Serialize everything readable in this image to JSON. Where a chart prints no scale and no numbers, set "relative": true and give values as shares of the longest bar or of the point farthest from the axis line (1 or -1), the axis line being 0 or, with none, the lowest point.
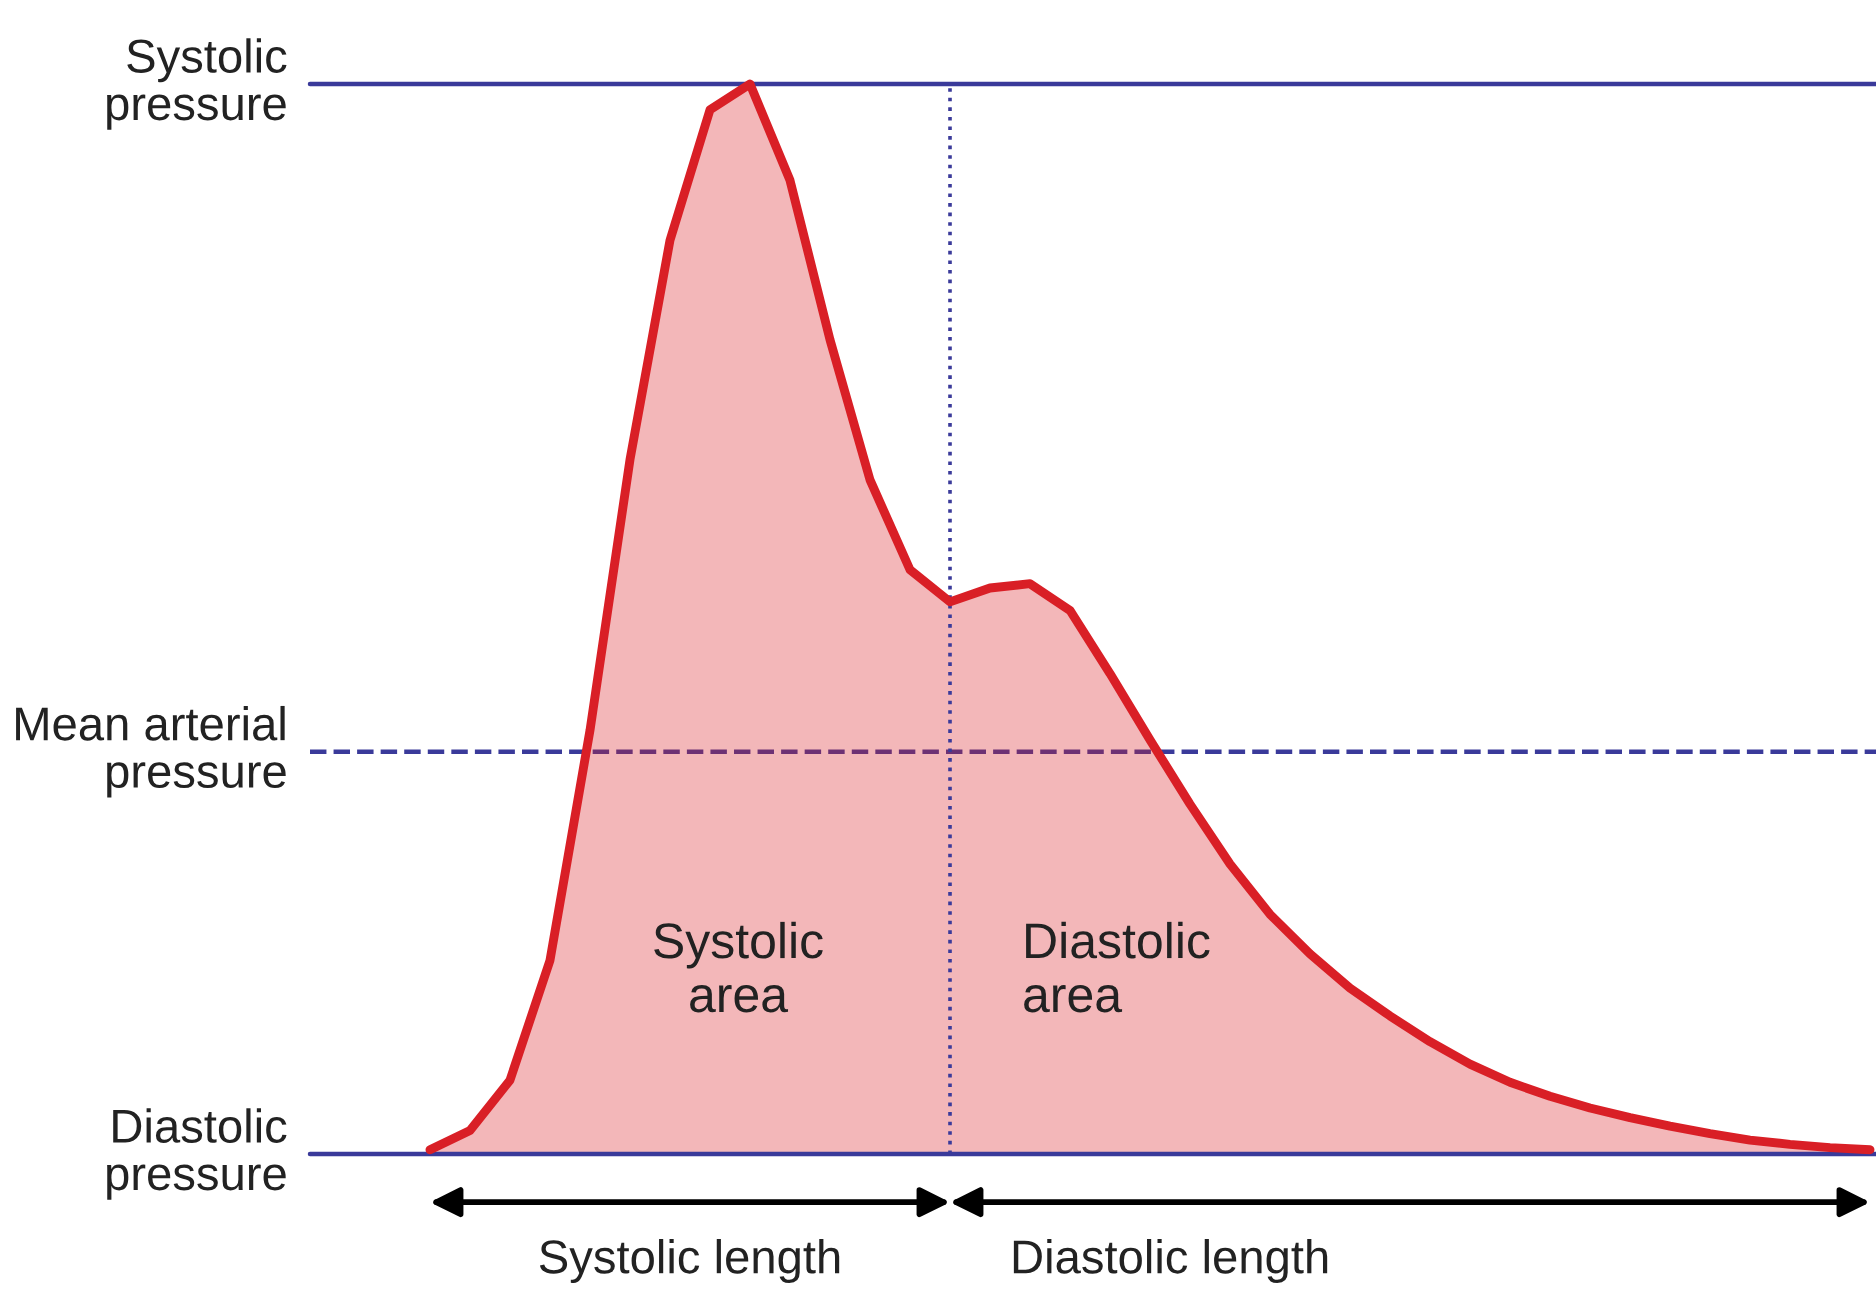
{
  "chart_data": {
    "type": "area",
    "relative": true,
    "tick_labels": false,
    "legend": false,
    "categories": [
      null,
      null,
      null,
      null,
      null,
      null,
      null,
      null,
      null,
      null,
      null,
      null,
      null,
      null,
      null,
      null,
      null,
      null,
      null,
      null,
      null,
      null,
      null,
      null,
      null,
      null,
      null,
      null,
      null,
      null,
      null,
      null,
      null,
      null,
      null,
      null,
      null
    ],
    "series": [
      {
        "color": "#d91f26",
        "values": [
          0.004,
          0.022,
          0.069,
          0.181,
          0.396,
          0.649,
          0.854,
          0.976,
          1.0,
          0.91,
          0.761,
          0.63,
          0.546,
          0.516,
          0.529,
          0.533,
          0.508,
          0.449,
          0.387,
          0.327,
          0.271,
          0.224,
          0.187,
          0.155,
          0.129,
          0.105,
          0.084,
          0.067,
          0.054,
          0.043,
          0.034,
          0.026,
          0.019,
          0.013,
          0.009,
          0.006,
          0.004
        ]
      }
    ],
    "ref_lines": [
      {
        "axis": "y",
        "value": 1,
        "label": "Systolic\npressure",
        "color": "#3a3a9a",
        "line_style": "solid"
      },
      {
        "axis": "y",
        "value": 0.376,
        "label": "Mean arterial\npressure",
        "color": "#3a3a9a",
        "line_style": "dashed"
      },
      {
        "axis": "y",
        "value": 0,
        "label": "Diastolic\npressure",
        "color": "#3a3a9a",
        "line_style": "solid"
      }
    ],
    "annotations": [
      "Systolic\narea",
      "Diastolic\narea",
      "Systolic length",
      "Diastolic length"
    ]
  }
}
